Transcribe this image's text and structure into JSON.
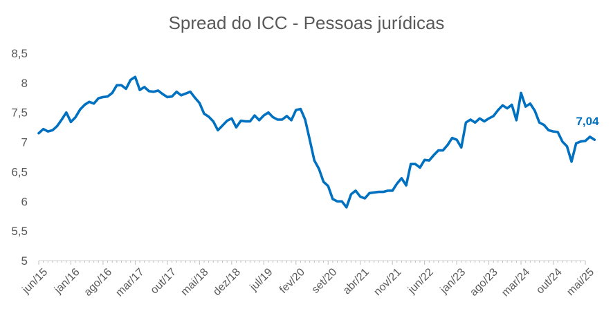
{
  "chart_data": {
    "type": "line",
    "title": "Spread do ICC - Pessoas jurídicas",
    "xlabel": "",
    "ylabel": "",
    "ylim": [
      5,
      8.5
    ],
    "yticks": [
      "5",
      "5,5",
      "6",
      "6,5",
      "7",
      "7,5",
      "8",
      "8,5"
    ],
    "x_tick_labels": [
      "jun/15",
      "jan/16",
      "ago/16",
      "mar/17",
      "out/17",
      "mai/18",
      "dez/18",
      "jul/19",
      "fev/20",
      "set/20",
      "abr/21",
      "nov/21",
      "jun/22",
      "jan/23",
      "ago/23",
      "mar/24",
      "out/24",
      "mai/25"
    ],
    "x_start": "2015-06",
    "x_end": "2025-05",
    "grid": false,
    "legend": "none",
    "series": [
      {
        "color": "#0070C0",
        "values": [
          7.15,
          7.22,
          7.18,
          7.2,
          7.27,
          7.38,
          7.5,
          7.34,
          7.42,
          7.55,
          7.63,
          7.68,
          7.65,
          7.74,
          7.76,
          7.77,
          7.83,
          7.96,
          7.96,
          7.9,
          8.05,
          8.1,
          7.88,
          7.93,
          7.86,
          7.85,
          7.87,
          7.81,
          7.76,
          7.77,
          7.85,
          7.79,
          7.82,
          7.85,
          7.75,
          7.66,
          7.48,
          7.43,
          7.35,
          7.2,
          7.28,
          7.36,
          7.4,
          7.25,
          7.36,
          7.35,
          7.35,
          7.45,
          7.37,
          7.45,
          7.5,
          7.42,
          7.38,
          7.38,
          7.44,
          7.37,
          7.54,
          7.56,
          7.38,
          7.04,
          6.69,
          6.55,
          6.33,
          6.26,
          6.04,
          6.0,
          6.0,
          5.9,
          6.12,
          6.18,
          6.08,
          6.05,
          6.14,
          6.15,
          6.16,
          6.16,
          6.18,
          6.18,
          6.3,
          6.39,
          6.27,
          6.63,
          6.63,
          6.57,
          6.7,
          6.69,
          6.78,
          6.86,
          6.86,
          6.95,
          7.07,
          7.04,
          6.91,
          7.33,
          7.38,
          7.33,
          7.4,
          7.35,
          7.4,
          7.44,
          7.54,
          7.62,
          7.57,
          7.63,
          7.37,
          7.83,
          7.6,
          7.65,
          7.53,
          7.33,
          7.29,
          7.2,
          7.18,
          7.17,
          7.01,
          6.93,
          6.67,
          6.98,
          7.01,
          7.02,
          7.09,
          7.04
        ]
      }
    ],
    "annotations": [
      {
        "text": "7,04",
        "x": "2025-05",
        "y": 7.04,
        "color": "#0070C0"
      }
    ]
  }
}
